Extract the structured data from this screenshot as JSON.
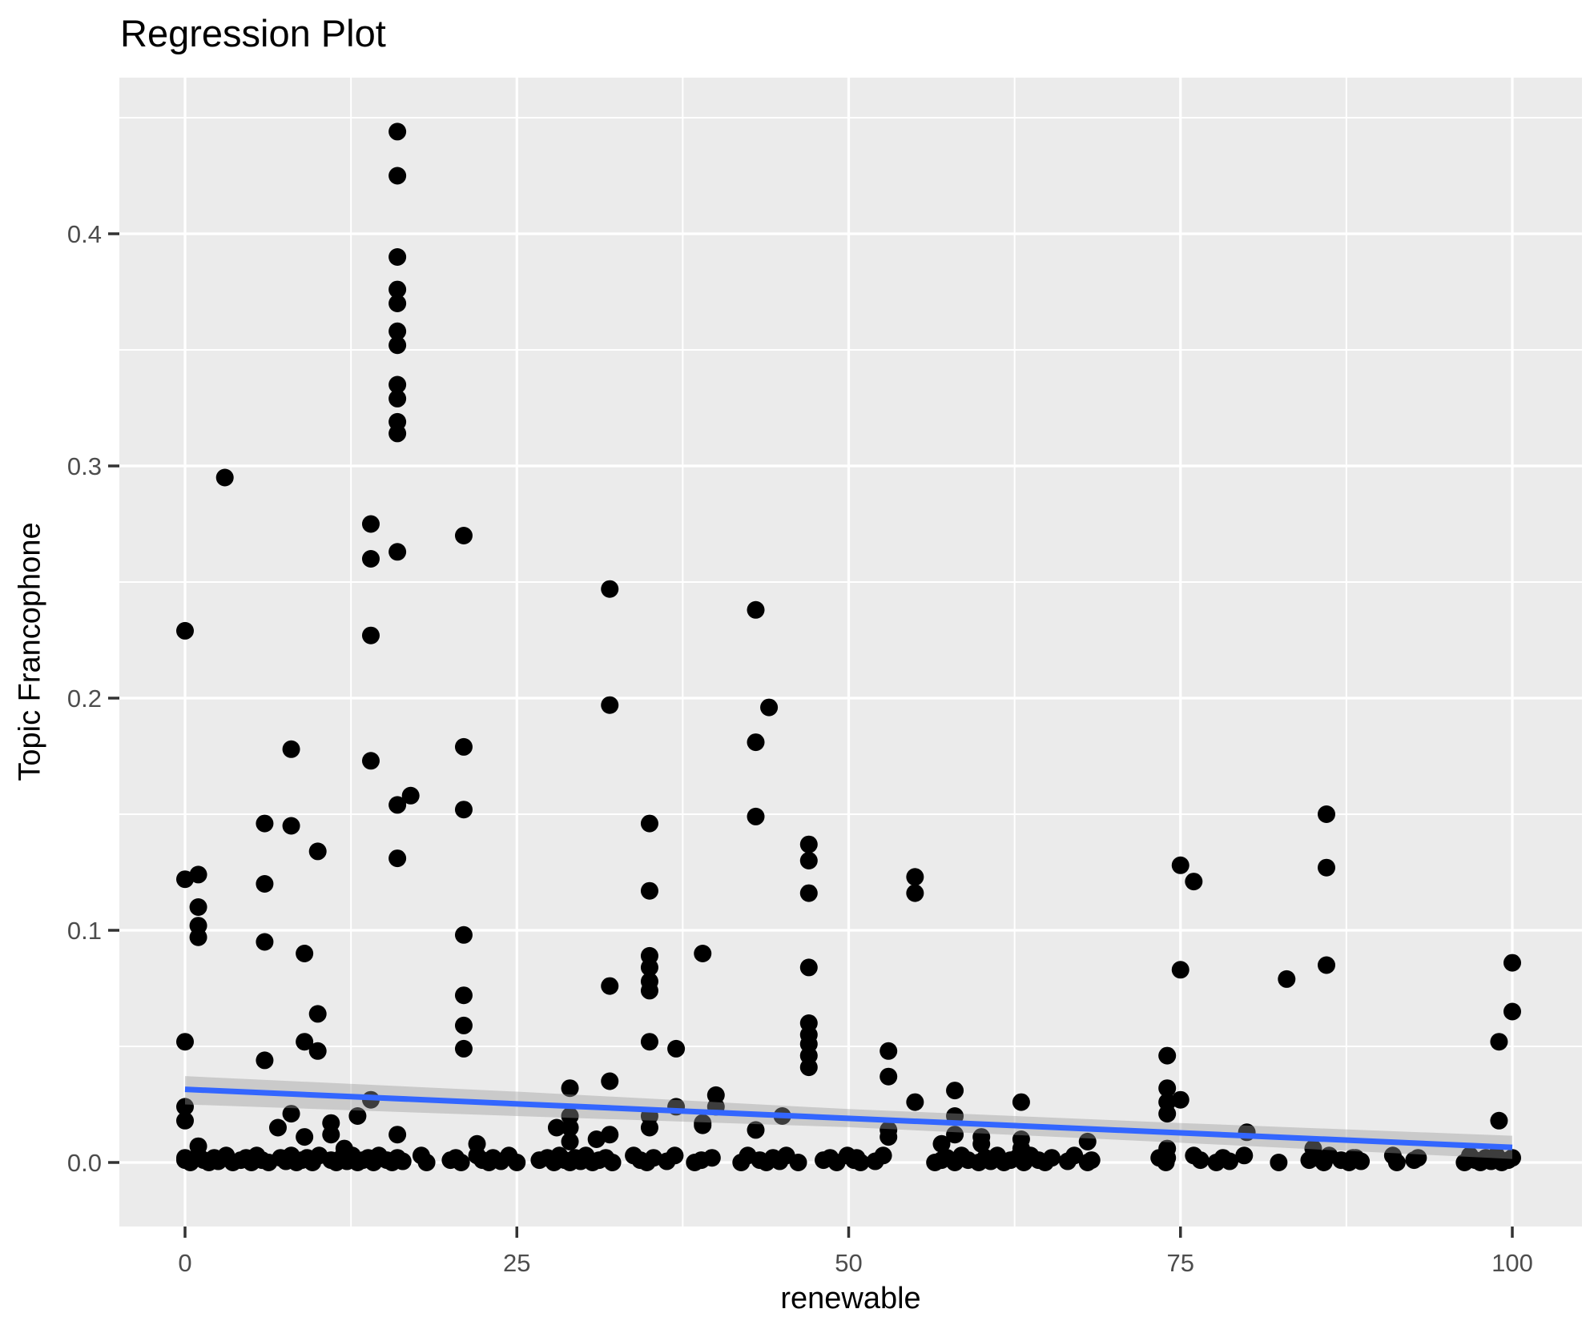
{
  "title": "Regression Plot",
  "x_axis": {
    "label": "renewable",
    "tick_labels": [
      "0",
      "25",
      "50",
      "75",
      "100"
    ],
    "tick_values": [
      0,
      25,
      50,
      75,
      100
    ]
  },
  "y_axis": {
    "label": "Topic Francophone",
    "tick_labels": [
      "0.0",
      "0.1",
      "0.2",
      "0.3",
      "0.4"
    ],
    "tick_values": [
      0,
      0.1,
      0.2,
      0.3,
      0.4
    ]
  },
  "colors": {
    "panel_bg": "#EBEBEB",
    "grid": "#FFFFFF",
    "point": "#000000",
    "smooth_line": "#3366FF",
    "ci_band": "rgba(153,153,153,0.4)",
    "tick_label": "#4D4D4D",
    "tick_mark": "#333333",
    "text": "#000000"
  },
  "chart_data": {
    "type": "scatter",
    "title": "Regression Plot",
    "xlabel": "renewable",
    "ylabel": "Topic Francophone",
    "xlim": [
      -4.9,
      105.3
    ],
    "ylim": [
      -0.028,
      0.467
    ],
    "x_ticks": [
      0,
      25,
      50,
      75,
      100
    ],
    "x_minor_ticks": [
      12.5,
      37.5,
      62.5,
      87.5
    ],
    "y_ticks": [
      0,
      0.1,
      0.2,
      0.3,
      0.4
    ],
    "y_minor_ticks": [
      0.05,
      0.15,
      0.25,
      0.35,
      0.45
    ],
    "grid": "on",
    "legend": "none",
    "regression_line": {
      "x": [
        0,
        100
      ],
      "y": [
        0.0315,
        0.0065
      ],
      "color": "#3366FF"
    },
    "confidence_band": {
      "x": [
        0,
        25,
        50,
        75,
        100
      ],
      "upper": [
        0.0372,
        0.0305,
        0.023,
        0.017,
        0.0115
      ],
      "lower": [
        0.025,
        0.02,
        0.0152,
        0.0085,
        0.0015
      ]
    },
    "points": [
      [
        16,
        0.444
      ],
      [
        16,
        0.425
      ],
      [
        16,
        0.39
      ],
      [
        16,
        0.376
      ],
      [
        16,
        0.37
      ],
      [
        16,
        0.358
      ],
      [
        16,
        0.352
      ],
      [
        16,
        0.335
      ],
      [
        16,
        0.329
      ],
      [
        16,
        0.319
      ],
      [
        16,
        0.314
      ],
      [
        3,
        0.295
      ],
      [
        14,
        0.275
      ],
      [
        21,
        0.27
      ],
      [
        16,
        0.263
      ],
      [
        14,
        0.26
      ],
      [
        0,
        0.229
      ],
      [
        14,
        0.227
      ],
      [
        21,
        0.179
      ],
      [
        8,
        0.178
      ],
      [
        14,
        0.173
      ],
      [
        17,
        0.158
      ],
      [
        16,
        0.154
      ],
      [
        21,
        0.152
      ],
      [
        86,
        0.15
      ],
      [
        6,
        0.146
      ],
      [
        35,
        0.146
      ],
      [
        43,
        0.149
      ],
      [
        8,
        0.145
      ],
      [
        32,
        0.247
      ],
      [
        43,
        0.238
      ],
      [
        32,
        0.197
      ],
      [
        44,
        0.196
      ],
      [
        43,
        0.181
      ],
      [
        47,
        0.137
      ],
      [
        10,
        0.134
      ],
      [
        16,
        0.131
      ],
      [
        0,
        0.122
      ],
      [
        1,
        0.124
      ],
      [
        6,
        0.12
      ],
      [
        1,
        0.11
      ],
      [
        1,
        0.102
      ],
      [
        1,
        0.097
      ],
      [
        6,
        0.095
      ],
      [
        9,
        0.09
      ],
      [
        21,
        0.098
      ],
      [
        35,
        0.117
      ],
      [
        47,
        0.13
      ],
      [
        47,
        0.116
      ],
      [
        35,
        0.089
      ],
      [
        35,
        0.084
      ],
      [
        35,
        0.078
      ],
      [
        35,
        0.074
      ],
      [
        32,
        0.076
      ],
      [
        39,
        0.09
      ],
      [
        47,
        0.084
      ],
      [
        55,
        0.123
      ],
      [
        55,
        0.116
      ],
      [
        75,
        0.128
      ],
      [
        76,
        0.121
      ],
      [
        75,
        0.083
      ],
      [
        86,
        0.127
      ],
      [
        86,
        0.085
      ],
      [
        83,
        0.079
      ],
      [
        100,
        0.086
      ],
      [
        100,
        0.065
      ],
      [
        99,
        0.052
      ],
      [
        0,
        0.052
      ],
      [
        6,
        0.044
      ],
      [
        10,
        0.064
      ],
      [
        9,
        0.052
      ],
      [
        10,
        0.048
      ],
      [
        21,
        0.072
      ],
      [
        21,
        0.059
      ],
      [
        21,
        0.049
      ],
      [
        35,
        0.052
      ],
      [
        37,
        0.049
      ],
      [
        47,
        0.06
      ],
      [
        47,
        0.055
      ],
      [
        47,
        0.051
      ],
      [
        47,
        0.046
      ],
      [
        47,
        0.041
      ],
      [
        53,
        0.048
      ],
      [
        53,
        0.037
      ],
      [
        74,
        0.046
      ],
      [
        0,
        0.024
      ],
      [
        0,
        0.018
      ],
      [
        14,
        0.027
      ],
      [
        8,
        0.021
      ],
      [
        7,
        0.015
      ],
      [
        11,
        0.017
      ],
      [
        9,
        0.011
      ],
      [
        11,
        0.012
      ],
      [
        13,
        0.02
      ],
      [
        16,
        0.012
      ],
      [
        1,
        0.007
      ],
      [
        12,
        0.006
      ],
      [
        22,
        0.008
      ],
      [
        29,
        0.032
      ],
      [
        32,
        0.035
      ],
      [
        29,
        0.02
      ],
      [
        29,
        0.015
      ],
      [
        28,
        0.015
      ],
      [
        35,
        0.02
      ],
      [
        35,
        0.015
      ],
      [
        37,
        0.024
      ],
      [
        39,
        0.017
      ],
      [
        40,
        0.029
      ],
      [
        40,
        0.024
      ],
      [
        39,
        0.016
      ],
      [
        43,
        0.014
      ],
      [
        45,
        0.02
      ],
      [
        29,
        0.009
      ],
      [
        31,
        0.01
      ],
      [
        32,
        0.012
      ],
      [
        55,
        0.026
      ],
      [
        58,
        0.031
      ],
      [
        53,
        0.014
      ],
      [
        53,
        0.011
      ],
      [
        58,
        0.02
      ],
      [
        58,
        0.012
      ],
      [
        57,
        0.008
      ],
      [
        60,
        0.011
      ],
      [
        60,
        0.008
      ],
      [
        63,
        0.026
      ],
      [
        63,
        0.01
      ],
      [
        63,
        0.006
      ],
      [
        63,
        0.002
      ],
      [
        68,
        0.009
      ],
      [
        74,
        0.032
      ],
      [
        74,
        0.026
      ],
      [
        74,
        0.021
      ],
      [
        75,
        0.027
      ],
      [
        74,
        0.006
      ],
      [
        74,
        0.002
      ],
      [
        99,
        0.018
      ],
      [
        80,
        0.013
      ],
      [
        85,
        0.006
      ],
      [
        88,
        0.002
      ],
      [
        0,
        0.001
      ],
      [
        0,
        0.002
      ],
      [
        0.4,
        0
      ],
      [
        1,
        0.003
      ],
      [
        1.4,
        0.001
      ],
      [
        1.8,
        0
      ],
      [
        2.2,
        0.002
      ],
      [
        2.5,
        0.0005
      ],
      [
        3.1,
        0.003
      ],
      [
        3.6,
        0
      ],
      [
        4.2,
        0.001
      ],
      [
        4.6,
        0.002
      ],
      [
        5,
        0
      ],
      [
        5.4,
        0.003
      ],
      [
        5.8,
        0.001
      ],
      [
        6.3,
        0
      ],
      [
        7.2,
        0.002
      ],
      [
        7.6,
        0.0005
      ],
      [
        8,
        0.003
      ],
      [
        8.4,
        0
      ],
      [
        8.8,
        0.001
      ],
      [
        9.2,
        0.002
      ],
      [
        9.6,
        0
      ],
      [
        10.1,
        0.003
      ],
      [
        11,
        0.001
      ],
      [
        11.4,
        0
      ],
      [
        11.8,
        0.002
      ],
      [
        12.2,
        0.0005
      ],
      [
        12.6,
        0.003
      ],
      [
        13,
        0
      ],
      [
        13.4,
        0.001
      ],
      [
        13.8,
        0.002
      ],
      [
        14.2,
        0
      ],
      [
        14.6,
        0.003
      ],
      [
        15.2,
        0.001
      ],
      [
        15.6,
        0
      ],
      [
        16,
        0.002
      ],
      [
        16.4,
        0.0005
      ],
      [
        17.8,
        0.003
      ],
      [
        18.2,
        0
      ],
      [
        20,
        0.001
      ],
      [
        20.4,
        0.002
      ],
      [
        20.8,
        0
      ],
      [
        22,
        0.003
      ],
      [
        22.4,
        0.001
      ],
      [
        22.9,
        0
      ],
      [
        23.2,
        0.002
      ],
      [
        23.8,
        0.0005
      ],
      [
        24.4,
        0.003
      ],
      [
        25,
        0
      ],
      [
        26.7,
        0.001
      ],
      [
        27.3,
        0.002
      ],
      [
        27.8,
        0
      ],
      [
        28.2,
        0.003
      ],
      [
        28.6,
        0.001
      ],
      [
        29,
        0
      ],
      [
        29.4,
        0.002
      ],
      [
        29.8,
        0.0005
      ],
      [
        30.2,
        0.003
      ],
      [
        30.7,
        0
      ],
      [
        31.2,
        0.001
      ],
      [
        31.7,
        0.002
      ],
      [
        32.2,
        0
      ],
      [
        33.8,
        0.003
      ],
      [
        34.3,
        0.001
      ],
      [
        34.8,
        0
      ],
      [
        35.3,
        0.002
      ],
      [
        36.3,
        0.0005
      ],
      [
        36.9,
        0.003
      ],
      [
        38.4,
        0
      ],
      [
        38.9,
        0.001
      ],
      [
        39.7,
        0.002
      ],
      [
        41.9,
        0
      ],
      [
        42.4,
        0.003
      ],
      [
        43.3,
        0.001
      ],
      [
        43.8,
        0
      ],
      [
        44.3,
        0.002
      ],
      [
        44.8,
        0.0005
      ],
      [
        45.3,
        0.003
      ],
      [
        46.2,
        0
      ],
      [
        48.1,
        0.001
      ],
      [
        48.6,
        0.002
      ],
      [
        49.1,
        0
      ],
      [
        49.9,
        0.003
      ],
      [
        50.4,
        0.001
      ],
      [
        50.9,
        0
      ],
      [
        50.6,
        0.002
      ],
      [
        52,
        0.0005
      ],
      [
        52.6,
        0.003
      ],
      [
        56.5,
        0
      ],
      [
        57,
        0.001
      ],
      [
        57.4,
        0.002
      ],
      [
        58,
        0
      ],
      [
        58.5,
        0.003
      ],
      [
        59,
        0.001
      ],
      [
        59.8,
        0
      ],
      [
        60.3,
        0.002
      ],
      [
        60.7,
        0.0005
      ],
      [
        61.2,
        0.003
      ],
      [
        61.7,
        0
      ],
      [
        62.2,
        0.001
      ],
      [
        62.7,
        0.002
      ],
      [
        63.2,
        0
      ],
      [
        63.7,
        0.003
      ],
      [
        64.3,
        0.001
      ],
      [
        64.8,
        0
      ],
      [
        65.3,
        0.002
      ],
      [
        66.5,
        0.0005
      ],
      [
        67,
        0.003
      ],
      [
        68,
        0
      ],
      [
        68.3,
        0.001
      ],
      [
        73.4,
        0.002
      ],
      [
        73.9,
        0
      ],
      [
        76,
        0.003
      ],
      [
        76.5,
        0.001
      ],
      [
        77.7,
        0
      ],
      [
        78.2,
        0.002
      ],
      [
        78.7,
        0.0005
      ],
      [
        79.8,
        0.003
      ],
      [
        82.4,
        0
      ],
      [
        84.7,
        0.001
      ],
      [
        85.3,
        0.002
      ],
      [
        85.8,
        0
      ],
      [
        86.2,
        0.003
      ],
      [
        87.1,
        0.001
      ],
      [
        87.7,
        0
      ],
      [
        88.2,
        0.002
      ],
      [
        88.6,
        0.0005
      ],
      [
        91,
        0.003
      ],
      [
        91.3,
        0
      ],
      [
        92.6,
        0.001
      ],
      [
        92.9,
        0.002
      ],
      [
        96.4,
        0
      ],
      [
        96.8,
        0.003
      ],
      [
        97.2,
        0.001
      ],
      [
        97.6,
        0
      ],
      [
        98,
        0.002
      ],
      [
        98.4,
        0.0005
      ],
      [
        98.8,
        0.003
      ],
      [
        99.2,
        0
      ],
      [
        99.7,
        0.001
      ],
      [
        100,
        0.002
      ]
    ]
  }
}
